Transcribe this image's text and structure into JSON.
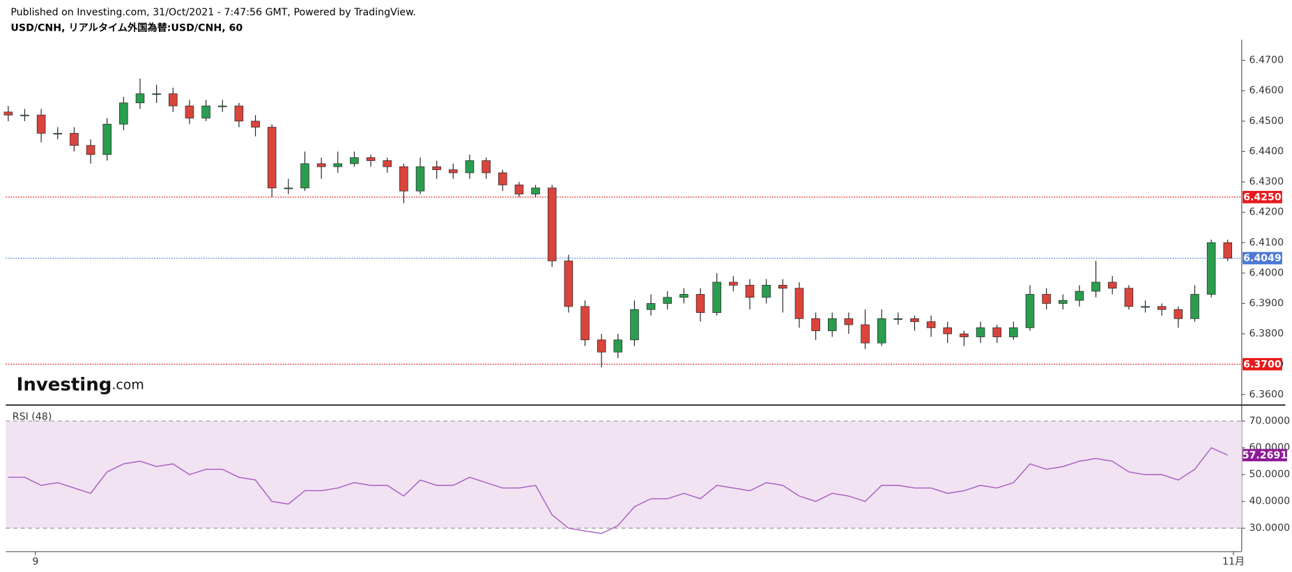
{
  "header": {
    "published": "Published on Investing.com, 31/Oct/2021 - 7:47:56 GMT, Powered by TradingView.",
    "symbol": "USD/CNH, リアルタイム外国為替:USD/CNH, 60"
  },
  "logo": {
    "name": "Investing",
    "suffix": ".com"
  },
  "chart_data": [
    {
      "type": "candlestick",
      "up_color": "#2a9d4e",
      "down_color": "#d9443c",
      "wick_color": "#222222",
      "open": [
        6.453,
        6.452,
        6.452,
        6.446,
        6.446,
        6.442,
        6.439,
        6.449,
        6.456,
        6.459,
        6.459,
        6.455,
        6.451,
        6.455,
        6.455,
        6.45,
        6.448,
        6.428,
        6.428,
        6.436,
        6.435,
        6.436,
        6.438,
        6.437,
        6.435,
        6.427,
        6.435,
        6.434,
        6.433,
        6.437,
        6.433,
        6.429,
        6.426,
        6.428,
        6.404,
        6.389,
        6.378,
        6.374,
        6.378,
        6.388,
        6.39,
        6.392,
        6.393,
        6.387,
        6.397,
        6.396,
        6.392,
        6.396,
        6.395,
        6.385,
        6.381,
        6.385,
        6.383,
        6.377,
        6.385,
        6.385,
        6.384,
        6.382,
        6.38,
        6.379,
        6.382,
        6.379,
        6.382,
        6.393,
        6.39,
        6.391,
        6.394,
        6.397,
        6.395,
        6.389,
        6.389,
        6.388,
        6.385,
        6.393,
        6.41
      ],
      "high": [
        6.455,
        6.454,
        6.454,
        6.448,
        6.448,
        6.444,
        6.451,
        6.458,
        6.464,
        6.462,
        6.461,
        6.457,
        6.457,
        6.457,
        6.456,
        6.452,
        6.449,
        6.431,
        6.44,
        6.438,
        6.44,
        6.44,
        6.439,
        6.438,
        6.436,
        6.438,
        6.437,
        6.436,
        6.439,
        6.438,
        6.434,
        6.43,
        6.429,
        6.429,
        6.406,
        6.391,
        6.38,
        6.38,
        6.391,
        6.393,
        6.394,
        6.395,
        6.395,
        6.4,
        6.399,
        6.398,
        6.398,
        6.398,
        6.397,
        6.387,
        6.387,
        6.387,
        6.388,
        6.388,
        6.387,
        6.386,
        6.386,
        6.384,
        6.381,
        6.384,
        6.383,
        6.384,
        6.396,
        6.395,
        6.393,
        6.396,
        6.404,
        6.399,
        6.396,
        6.391,
        6.39,
        6.389,
        6.396,
        6.411,
        6.411
      ],
      "low": [
        6.45,
        6.45,
        6.443,
        6.444,
        6.44,
        6.436,
        6.437,
        6.447,
        6.454,
        6.456,
        6.453,
        6.449,
        6.45,
        6.453,
        6.448,
        6.445,
        6.425,
        6.426,
        6.427,
        6.431,
        6.433,
        6.435,
        6.435,
        6.433,
        6.423,
        6.426,
        6.431,
        6.431,
        6.431,
        6.431,
        6.427,
        6.425,
        6.425,
        6.402,
        6.387,
        6.376,
        6.369,
        6.372,
        6.376,
        6.386,
        6.388,
        6.39,
        6.384,
        6.386,
        6.394,
        6.388,
        6.39,
        6.387,
        6.382,
        6.378,
        6.379,
        6.38,
        6.375,
        6.376,
        6.383,
        6.381,
        6.379,
        6.377,
        6.376,
        6.377,
        6.377,
        6.378,
        6.381,
        6.388,
        6.388,
        6.389,
        6.392,
        6.393,
        6.388,
        6.387,
        6.386,
        6.382,
        6.384,
        6.392,
        6.404
      ],
      "close": [
        6.452,
        6.452,
        6.446,
        6.446,
        6.442,
        6.439,
        6.449,
        6.456,
        6.459,
        6.459,
        6.455,
        6.451,
        6.455,
        6.455,
        6.45,
        6.448,
        6.428,
        6.428,
        6.436,
        6.435,
        6.436,
        6.438,
        6.437,
        6.435,
        6.427,
        6.435,
        6.434,
        6.433,
        6.437,
        6.433,
        6.429,
        6.426,
        6.428,
        6.404,
        6.389,
        6.378,
        6.374,
        6.378,
        6.388,
        6.39,
        6.392,
        6.393,
        6.387,
        6.397,
        6.396,
        6.392,
        6.396,
        6.395,
        6.385,
        6.381,
        6.385,
        6.383,
        6.377,
        6.385,
        6.385,
        6.384,
        6.382,
        6.38,
        6.379,
        6.382,
        6.379,
        6.382,
        6.393,
        6.39,
        6.391,
        6.394,
        6.397,
        6.395,
        6.389,
        6.389,
        6.388,
        6.385,
        6.393,
        6.41,
        6.4049
      ],
      "xlim": [
        -0.15,
        74.75
      ],
      "xticks": [
        {
          "value": 1.65,
          "label": "9"
        },
        {
          "value": 74.35,
          "label": "11月"
        }
      ],
      "ylim": [
        6.3567,
        6.4768
      ],
      "yticks": [
        {
          "value": 6.47,
          "label": "6.4700"
        },
        {
          "value": 6.46,
          "label": "6.4600"
        },
        {
          "value": 6.45,
          "label": "6.4500"
        },
        {
          "value": 6.44,
          "label": "6.4400"
        },
        {
          "value": 6.43,
          "label": "6.4300"
        },
        {
          "value": 6.42,
          "label": "6.4200"
        },
        {
          "value": 6.41,
          "label": "6.4100"
        },
        {
          "value": 6.4,
          "label": "6.4000"
        },
        {
          "value": 6.39,
          "label": "6.3900"
        },
        {
          "value": 6.38,
          "label": "6.3800"
        },
        {
          "value": 6.37,
          "label": "6.3700"
        },
        {
          "value": 6.36,
          "label": "6.3600"
        }
      ],
      "levels": [
        {
          "value": 6.425,
          "label": "6.4250",
          "color": "#e8191b"
        },
        {
          "value": 6.4049,
          "label": "6.4049",
          "color": "#4a78d6"
        },
        {
          "value": 6.37,
          "label": "6.3700",
          "color": "#e8191b"
        }
      ]
    },
    {
      "type": "line",
      "title": "RSI (48)",
      "color": "#a55bc2",
      "values": [
        49,
        49,
        46,
        47,
        45,
        43,
        51,
        54,
        55,
        53,
        54,
        50,
        52,
        52,
        49,
        48,
        40,
        39,
        44,
        44,
        45,
        47,
        46,
        46,
        42,
        48,
        46,
        46,
        49,
        47,
        45,
        45,
        46,
        35,
        30,
        29,
        28,
        31,
        38,
        41,
        41,
        43,
        41,
        46,
        45,
        44,
        47,
        46,
        42,
        40,
        43,
        42,
        40,
        46,
        46,
        45,
        45,
        43,
        44,
        46,
        45,
        47,
        54,
        52,
        53,
        55,
        56,
        55,
        51,
        50,
        50,
        48,
        52,
        60,
        57.2691
      ],
      "xlim": [
        -0.15,
        74.75
      ],
      "ylim": [
        21.4,
        75.5
      ],
      "yticks": [
        {
          "value": 70,
          "label": "70.0000"
        },
        {
          "value": 60,
          "label": "60.0000"
        },
        {
          "value": 50,
          "label": "50.0000"
        },
        {
          "value": 40,
          "label": "40.0000"
        },
        {
          "value": 30,
          "label": "30.0000"
        }
      ],
      "band": [
        30,
        70
      ],
      "band_color": "#f1e3f2",
      "last_color": "#8e1a96"
    }
  ]
}
